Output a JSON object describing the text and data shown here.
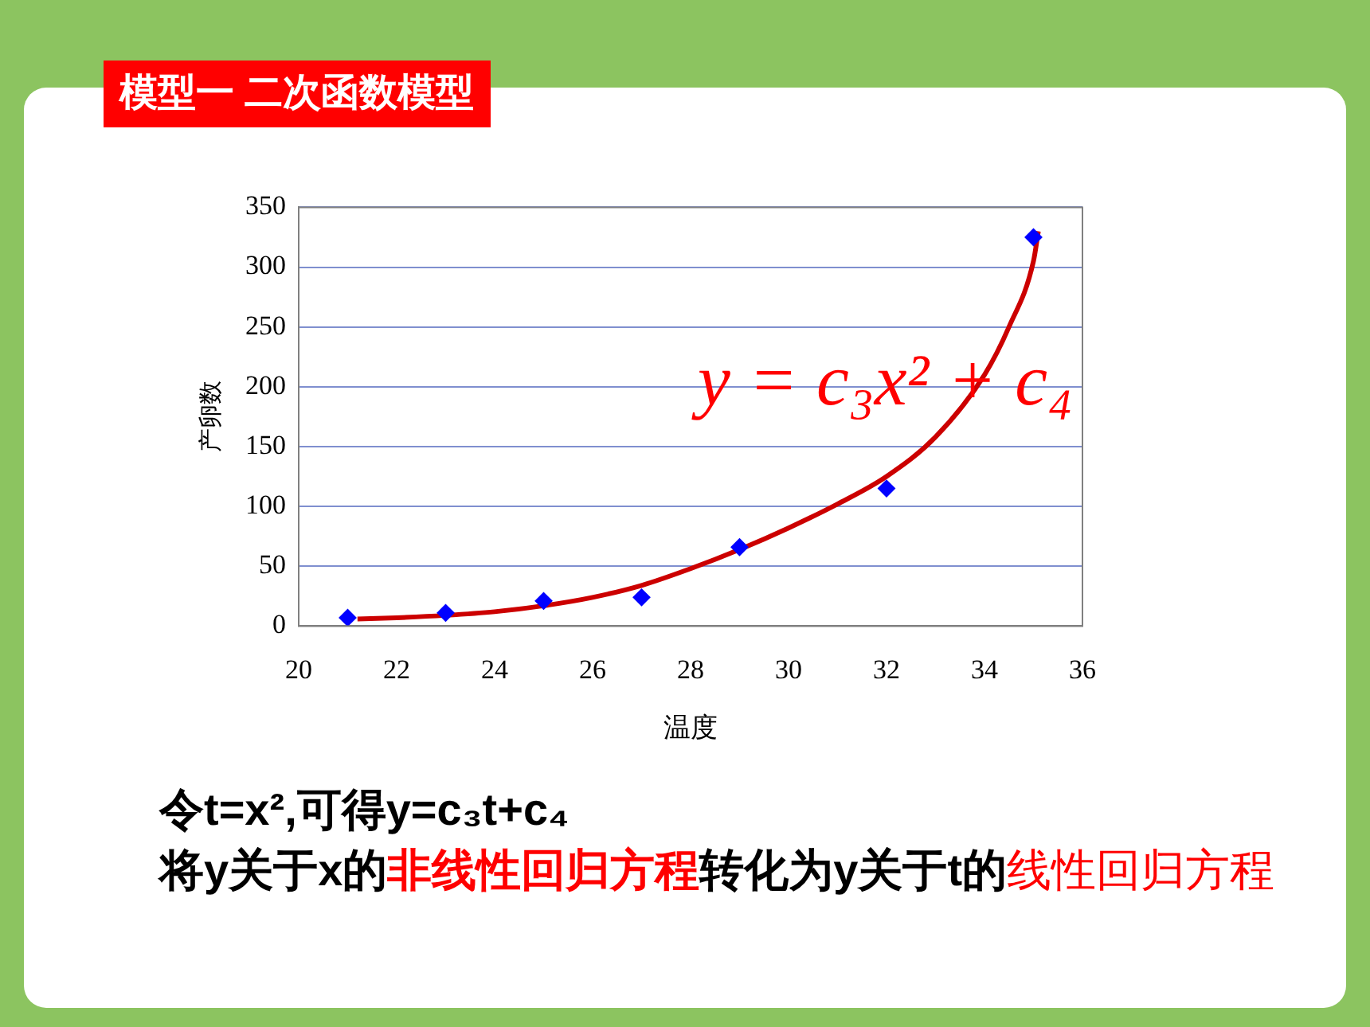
{
  "chart_data": {
    "type": "scatter",
    "title": "模型一 二次函数模型",
    "xlabel": "温度",
    "ylabel": "产卵数",
    "annotations": [
      "y = c₃x² + c₄",
      "令t=x²,可得y=c₃t+c₄",
      "将y关于x的",
      "非线性回归方程",
      "转化为y关于t的",
      "线性回归方程"
    ],
    "series": [
      {
        "type": "scatter",
        "color": "#0000ff",
        "marker": "diamond",
        "x": [
          21,
          23,
          25,
          27,
          29,
          32,
          35
        ],
        "values": [
          7,
          11,
          21,
          24,
          66,
          115,
          325
        ]
      },
      {
        "type": "line",
        "color": "#cc0000",
        "marker": "none",
        "x": [
          21.2,
          22,
          23,
          24,
          25,
          26,
          27,
          28,
          29,
          30,
          31,
          32,
          33,
          34,
          34.5,
          35,
          35.1
        ],
        "values": [
          6,
          7,
          9,
          12,
          17,
          24,
          34,
          48,
          64,
          82,
          102,
          125,
          158,
          210,
          250,
          305,
          330
        ]
      }
    ],
    "xlim": [
      20,
      36
    ],
    "xticks": [
      20,
      22,
      24,
      26,
      28,
      30,
      32,
      34,
      36
    ],
    "ylim": [
      0,
      350
    ],
    "yticks": [
      0,
      50,
      100,
      150,
      200,
      250,
      300,
      350
    ],
    "grid": "y",
    "legend": false
  }
}
